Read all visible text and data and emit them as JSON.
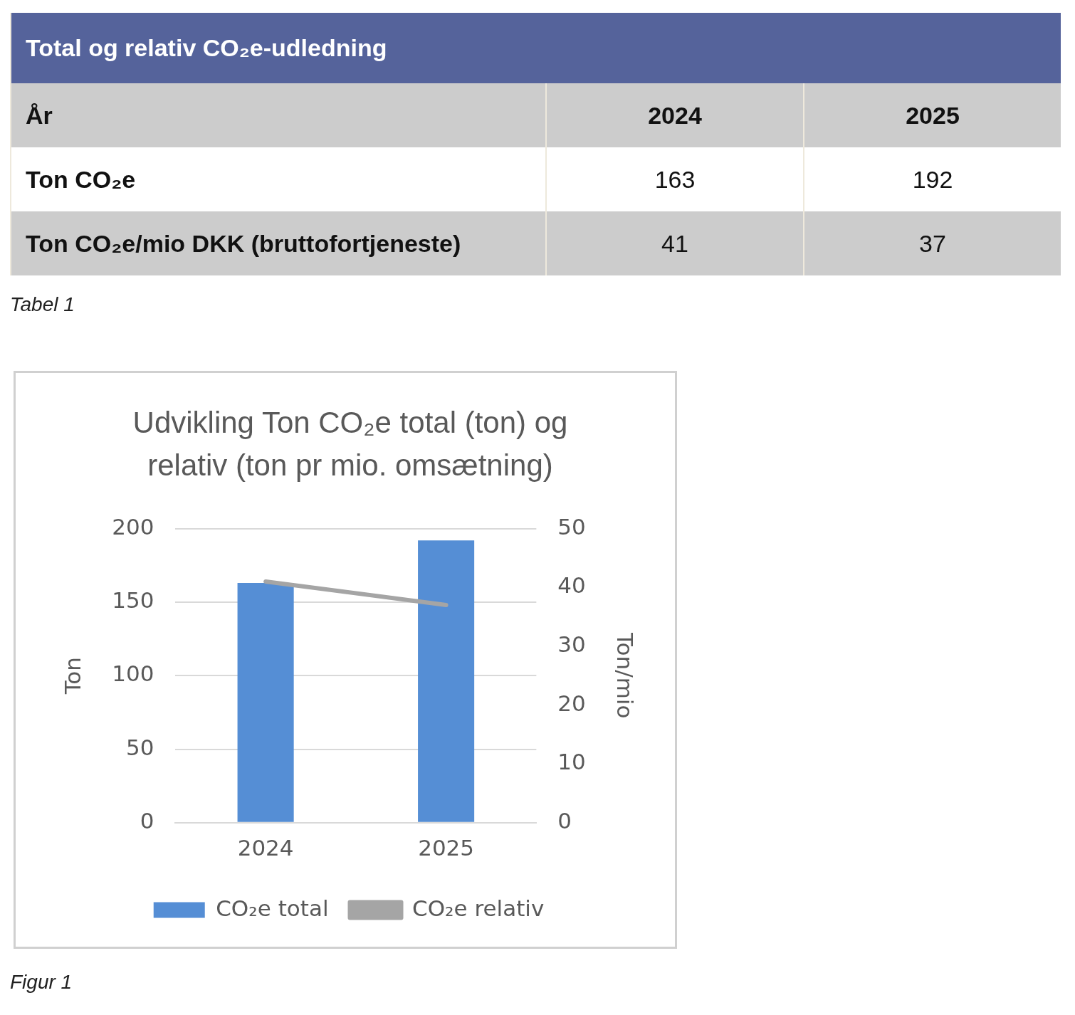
{
  "chart_data": [
    {
      "type": "other",
      "title": "Total og relativ CO₂e-udledning",
      "categories": [
        "2024",
        "2025"
      ],
      "series": [
        {
          "name": "Ton CO₂e",
          "values": [
            163,
            192
          ]
        },
        {
          "name": "Ton CO₂e/mio DKK (bruttofortjeneste)",
          "values": [
            41,
            37
          ]
        }
      ],
      "data_labels": true,
      "annotations": [
        "År",
        "Tabel 1"
      ]
    },
    {
      "type": "bar",
      "title": "Udvikling Ton CO₂e total (ton) og relativ (ton pr mio. omsætning)",
      "categories": [
        "2024",
        "2025"
      ],
      "series": [
        {
          "name": "CO₂e total",
          "type": "bar",
          "color": "#558ed5",
          "values": [
            163,
            192
          ]
        },
        {
          "name": "CO₂e relativ",
          "type": "line",
          "axis": "y2",
          "color": "#a5a5a5",
          "values": [
            41,
            37
          ]
        }
      ],
      "ylabel": "Ton",
      "y2label": "Ton/mio",
      "ylim": [
        0,
        200
      ],
      "yticks": [
        0,
        50,
        100,
        150,
        200
      ],
      "y2lim": [
        0,
        50
      ],
      "y2ticks": [
        0,
        10,
        20,
        30,
        40,
        50
      ],
      "grid": "y",
      "legend": "bottom",
      "marker": "none",
      "line_style": "solid",
      "annotations": [
        "Figur 1"
      ]
    }
  ]
}
